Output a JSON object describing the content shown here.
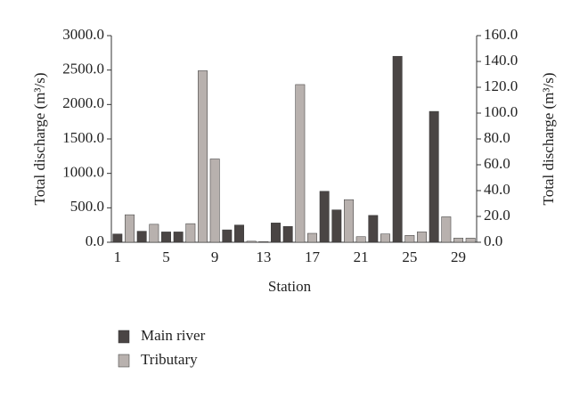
{
  "chart_data": {
    "type": "bar",
    "x_label": "Station",
    "y_label": "Total discharge (m³/s)",
    "y2_label": "Total discharge (m³/s)",
    "categories": [
      "1",
      null,
      null,
      null,
      "5",
      null,
      null,
      null,
      "9",
      null,
      null,
      null,
      "13",
      null,
      null,
      null,
      "17",
      null,
      null,
      null,
      "21",
      null,
      null,
      null,
      "25",
      null,
      null,
      null,
      "29",
      null
    ],
    "series": [
      {
        "name": "Main river",
        "color": "#4a4544",
        "values": [
          120,
          null,
          160,
          null,
          150,
          150,
          null,
          null,
          null,
          180,
          250,
          null,
          null,
          280,
          230,
          null,
          null,
          740,
          470,
          null,
          null,
          390,
          null,
          2700,
          null,
          null,
          1900,
          null,
          null,
          null
        ]
      },
      {
        "name": "Tributary",
        "color": "#b8b1ae",
        "axis": "y2",
        "values": [
          null,
          21.3,
          null,
          13.9,
          null,
          null,
          14.4,
          132.8,
          64.5,
          null,
          null,
          0.8,
          0.5,
          null,
          null,
          122.1,
          6.9,
          null,
          null,
          33,
          4.3,
          null,
          6.4,
          null,
          5.3,
          8,
          null,
          19.7,
          3.2,
          3.2
        ]
      }
    ],
    "ylim": [
      0,
      3000
    ],
    "yticks": [
      {
        "value": 0,
        "label": "0.0"
      },
      {
        "value": 500,
        "label": "500.0"
      },
      {
        "value": 1000,
        "label": "1000.0"
      },
      {
        "value": 1500,
        "label": "1500.0"
      },
      {
        "value": 2000,
        "label": "2000.0"
      },
      {
        "value": 2500,
        "label": "2500.0"
      },
      {
        "value": 3000,
        "label": "3000.0"
      }
    ],
    "y2lim": [
      0,
      160
    ],
    "y2ticks": [
      {
        "value": 0,
        "label": "0.0"
      },
      {
        "value": 20,
        "label": "20.0"
      },
      {
        "value": 40,
        "label": "40.0"
      },
      {
        "value": 60,
        "label": "60.0"
      },
      {
        "value": 80,
        "label": "80.0"
      },
      {
        "value": 100,
        "label": "100.0"
      },
      {
        "value": 120,
        "label": "120.0"
      },
      {
        "value": 140,
        "label": "140.0"
      },
      {
        "value": 160,
        "label": "160.0"
      }
    ],
    "grid": false
  }
}
